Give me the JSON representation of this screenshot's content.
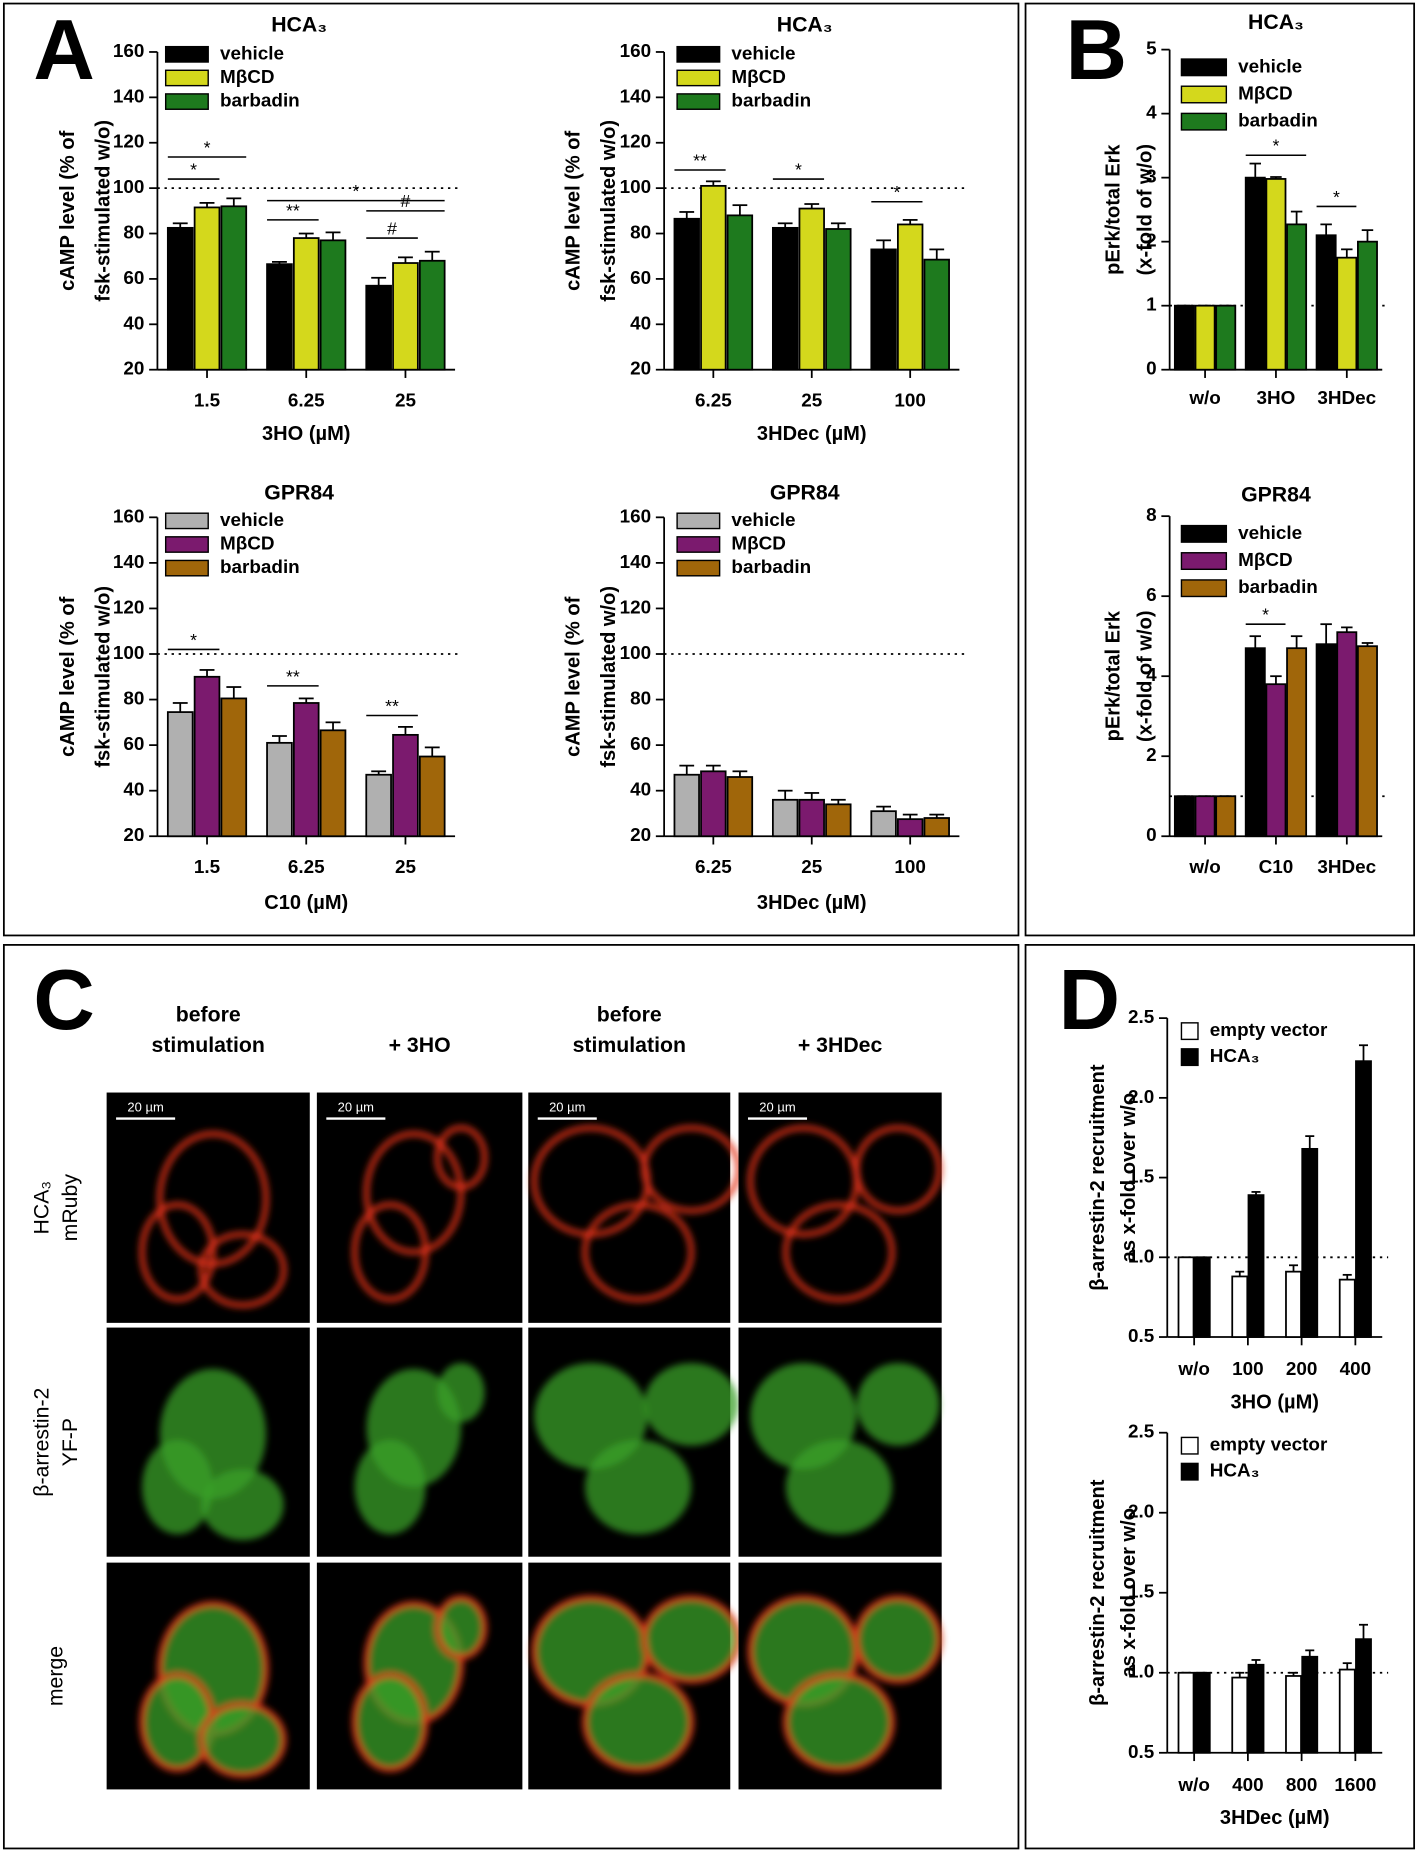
{
  "chart_data": [
    {
      "type": "bar",
      "title": "HCA₃",
      "y_label": [
        "cAMP level (% of",
        "fsk-stimulated w/o)"
      ],
      "x_label": "3HO (µM)",
      "categories": [
        "1.5",
        "6.25",
        "25"
      ],
      "series": [
        {
          "name": "vehicle",
          "color": "#000000",
          "values": [
            82.5,
            66.5,
            57
          ],
          "errors": [
            2,
            1,
            3.5
          ]
        },
        {
          "name": "MβCD",
          "color": "#d4d81c",
          "values": [
            91.5,
            78,
            67
          ],
          "errors": [
            2,
            2,
            2.5
          ]
        },
        {
          "name": "barbadin",
          "color": "#1e7a1e",
          "values": [
            92,
            77,
            68
          ],
          "errors": [
            3.5,
            3.5,
            4
          ]
        }
      ],
      "ylim": [
        20,
        160
      ],
      "yticks": [
        20,
        40,
        60,
        80,
        100,
        120,
        140,
        160
      ],
      "reference_line": 100,
      "annotations": [
        "*",
        "*",
        "*",
        "**",
        "#",
        "#"
      ]
    },
    {
      "type": "bar",
      "title": "HCA₃",
      "y_label": [
        "cAMP level (% of",
        "fsk-stimulated w/o)"
      ],
      "x_label": "3HDec (µM)",
      "categories": [
        "6.25",
        "25",
        "100"
      ],
      "series": [
        {
          "name": "vehicle",
          "color": "#000000",
          "values": [
            86.5,
            82.5,
            73
          ],
          "errors": [
            3,
            2,
            4
          ]
        },
        {
          "name": "MβCD",
          "color": "#d4d81c",
          "values": [
            101,
            91,
            84
          ],
          "errors": [
            2,
            2,
            2
          ]
        },
        {
          "name": "barbadin",
          "color": "#1e7a1e",
          "values": [
            88,
            82,
            68.5
          ],
          "errors": [
            4.5,
            2.5,
            4.5
          ]
        }
      ],
      "ylim": [
        20,
        160
      ],
      "yticks": [
        20,
        40,
        60,
        80,
        100,
        120,
        140,
        160
      ],
      "reference_line": 100,
      "annotations": [
        "**",
        "*",
        "*"
      ]
    },
    {
      "type": "bar",
      "title": "GPR84",
      "y_label": [
        "cAMP level (% of",
        "fsk-stimulated w/o)"
      ],
      "x_label": "C10 (µM)",
      "categories": [
        "1.5",
        "6.25",
        "25"
      ],
      "series": [
        {
          "name": "vehicle",
          "color": "#b0b0b0",
          "values": [
            74.5,
            61,
            47
          ],
          "errors": [
            4,
            3,
            1.5
          ]
        },
        {
          "name": "MβCD",
          "color": "#7b1a6e",
          "values": [
            90,
            78.5,
            64.5
          ],
          "errors": [
            3,
            2,
            3.5
          ]
        },
        {
          "name": "barbadin",
          "color": "#a0660a",
          "values": [
            80.5,
            66.5,
            55
          ],
          "errors": [
            5,
            3.5,
            4
          ]
        }
      ],
      "ylim": [
        20,
        160
      ],
      "yticks": [
        20,
        40,
        60,
        80,
        100,
        120,
        140,
        160
      ],
      "reference_line": 100,
      "annotations": [
        "*",
        "**",
        "**"
      ]
    },
    {
      "type": "bar",
      "title": "GPR84",
      "y_label": [
        "cAMP level (% of",
        "fsk-stimulated w/o)"
      ],
      "x_label": "3HDec (µM)",
      "categories": [
        "6.25",
        "25",
        "100"
      ],
      "series": [
        {
          "name": "vehicle",
          "color": "#b0b0b0",
          "values": [
            47,
            36,
            31
          ],
          "errors": [
            4,
            4,
            2
          ]
        },
        {
          "name": "MβCD",
          "color": "#7b1a6e",
          "values": [
            48.5,
            36,
            27.5
          ],
          "errors": [
            2.5,
            3,
            2
          ]
        },
        {
          "name": "barbadin",
          "color": "#a0660a",
          "values": [
            46,
            34,
            28
          ],
          "errors": [
            2.5,
            2,
            1.5
          ]
        }
      ],
      "ylim": [
        20,
        160
      ],
      "yticks": [
        20,
        40,
        60,
        80,
        100,
        120,
        140,
        160
      ],
      "reference_line": 100,
      "annotations": []
    },
    {
      "type": "bar",
      "title": "HCA₃",
      "y_label": [
        "pErk/total Erk",
        "(x-fold of w/o)"
      ],
      "categories": [
        "w/o",
        "3HO",
        "3HDec"
      ],
      "series": [
        {
          "name": "vehicle",
          "color": "#000000",
          "values": [
            1,
            3,
            2.1
          ],
          "errors": [
            0,
            0.22,
            0.17
          ]
        },
        {
          "name": "MβCD",
          "color": "#d4d81c",
          "values": [
            1,
            2.98,
            1.75
          ],
          "errors": [
            0,
            0.03,
            0.13
          ]
        },
        {
          "name": "barbadin",
          "color": "#1e7a1e",
          "values": [
            1,
            2.27,
            2
          ],
          "errors": [
            0,
            0.2,
            0.18
          ]
        }
      ],
      "ylim": [
        0,
        5
      ],
      "yticks": [
        0,
        1,
        2,
        3,
        4,
        5
      ],
      "reference_line": 1,
      "annotations": [
        "*",
        "*"
      ]
    },
    {
      "type": "bar",
      "title": "GPR84",
      "y_label": [
        "pErk/total Erk",
        "(x-fold of w/o)"
      ],
      "categories": [
        "w/o",
        "C10",
        "3HDec"
      ],
      "series": [
        {
          "name": "vehicle",
          "color": "#000000",
          "values": [
            1,
            4.7,
            4.8
          ],
          "errors": [
            0,
            0.3,
            0.5
          ]
        },
        {
          "name": "MβCD",
          "color": "#7b1a6e",
          "values": [
            1,
            3.8,
            5.1
          ],
          "errors": [
            0,
            0.2,
            0.12
          ]
        },
        {
          "name": "barbadin",
          "color": "#a0660a",
          "values": [
            1,
            4.7,
            4.75
          ],
          "errors": [
            0,
            0.3,
            0.08
          ]
        }
      ],
      "ylim": [
        0,
        8
      ],
      "yticks": [
        0,
        2,
        4,
        6,
        8
      ],
      "reference_line": 1,
      "annotations": [
        "*"
      ]
    },
    {
      "type": "bar",
      "y_label": [
        "β-arrestin-2 recruitment",
        "as x-fold over w/o"
      ],
      "x_label": "3HO (µM)",
      "categories": [
        "w/o",
        "100",
        "200",
        "400"
      ],
      "series": [
        {
          "name": "empty vector",
          "color": "#ffffff",
          "values": [
            1,
            0.88,
            0.91,
            0.86
          ],
          "errors": [
            0,
            0.03,
            0.04,
            0.03
          ]
        },
        {
          "name": "HCA₃",
          "color": "#000000",
          "values": [
            1,
            1.39,
            1.68,
            2.23
          ],
          "errors": [
            0,
            0.02,
            0.08,
            0.1
          ]
        }
      ],
      "ylim": [
        0.5,
        2.5
      ],
      "yticks": [
        0.5,
        {
          "value": 1,
          "label": "1.0"
        },
        1.5,
        {
          "value": 2,
          "label": "2.0"
        },
        2.5
      ],
      "reference_line": 1,
      "annotations": []
    },
    {
      "type": "bar",
      "y_label": [
        "β-arrestin-2 recruitment",
        "as x-fold over w/o"
      ],
      "x_label": "3HDec (µM)",
      "categories": [
        "w/o",
        "400",
        "800",
        "1600"
      ],
      "series": [
        {
          "name": "empty vector",
          "color": "#ffffff",
          "values": [
            1,
            0.97,
            0.98,
            1.02
          ],
          "errors": [
            0,
            0.03,
            0.02,
            0.04
          ]
        },
        {
          "name": "HCA₃",
          "color": "#000000",
          "values": [
            1,
            1.05,
            1.1,
            1.21
          ],
          "errors": [
            0,
            0.03,
            0.04,
            0.09
          ]
        }
      ],
      "ylim": [
        0.5,
        2.5
      ],
      "yticks": [
        0.5,
        {
          "value": 1,
          "label": "1.0"
        },
        1.5,
        {
          "value": 2,
          "label": "2.0"
        },
        2.5
      ],
      "reference_line": 1,
      "annotations": []
    }
  ],
  "panel_labels": [
    "A",
    "B",
    "C",
    "D"
  ],
  "micrographs": {
    "columns": [
      [
        "before",
        "stimulation"
      ],
      [
        "+ 3HO"
      ],
      [
        "before",
        "stimulation"
      ],
      [
        "+ 3HDec"
      ]
    ],
    "rows": [
      [
        "HCA₃",
        "mRuby"
      ],
      [
        "β-arrestin-2",
        "YF-P"
      ],
      [
        "merge"
      ]
    ],
    "scale_bar": "20 µm"
  }
}
